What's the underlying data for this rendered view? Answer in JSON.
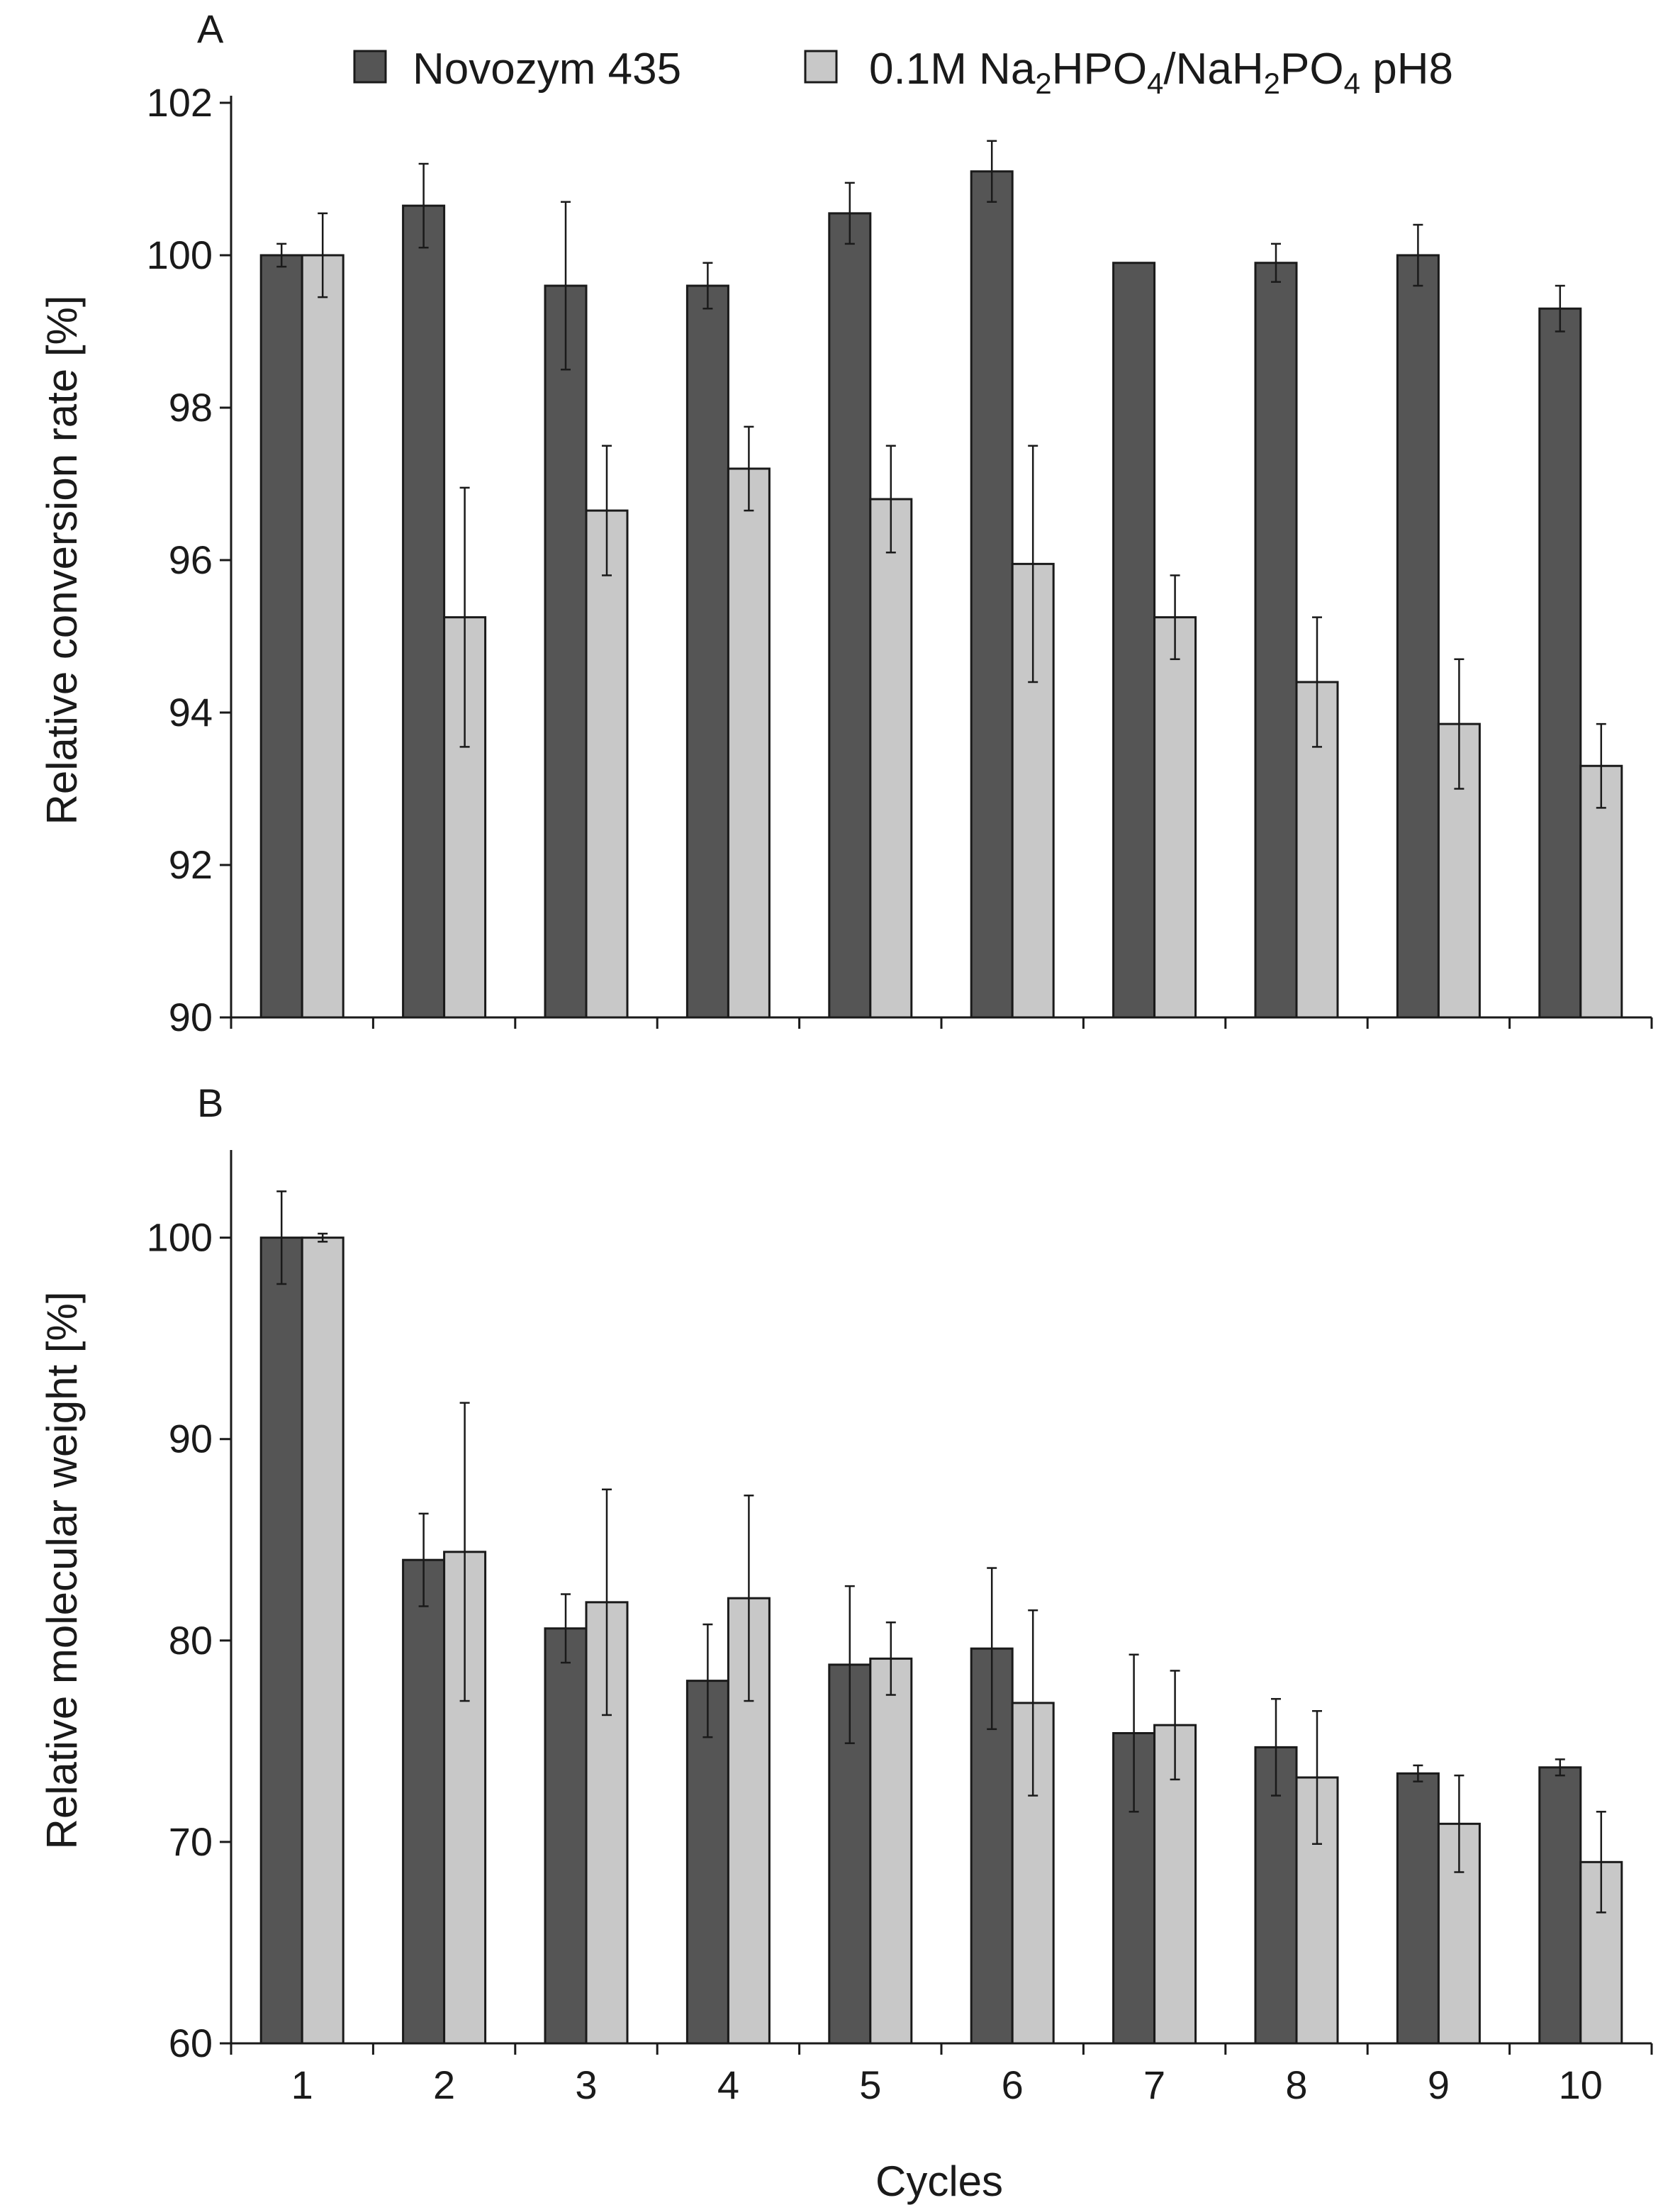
{
  "legend": {
    "series_1": "Novozym 435",
    "series_2_parts": {
      "p1": "0.1M Na",
      "s1": "2",
      "p2": "HPO",
      "s2": "4",
      "p3": "/NaH",
      "s3": "2",
      "p4": "PO",
      "s4": "4",
      "p5": " pH8"
    }
  },
  "colors": {
    "series_1": "#555555",
    "series_2": "#c8c8c8",
    "axis": "#1a1a1a"
  },
  "chart_data": [
    {
      "type": "bar",
      "panel_label": "A",
      "title": "",
      "xlabel": "",
      "ylabel": "Relative conversion rate [%]",
      "ylim": [
        90,
        102
      ],
      "yticks": [
        90,
        92,
        94,
        96,
        98,
        100,
        102
      ],
      "categories": [
        "1",
        "2",
        "3",
        "4",
        "5",
        "6",
        "7",
        "8",
        "9",
        "10"
      ],
      "show_category_labels": false,
      "series": [
        {
          "name": "Novozym 435",
          "values": [
            100.0,
            100.65,
            99.6,
            99.6,
            100.55,
            101.1,
            99.9,
            99.9,
            100.0,
            99.3
          ],
          "errors": [
            0.15,
            0.55,
            1.1,
            0.3,
            0.4,
            0.4,
            0,
            0.25,
            0.4,
            0.3
          ]
        },
        {
          "name": "0.1M Na2HPO4/NaH2PO4 pH8",
          "values": [
            100.0,
            95.25,
            96.65,
            97.2,
            96.8,
            95.95,
            95.25,
            94.4,
            93.85,
            93.3
          ],
          "errors": [
            0.55,
            1.7,
            0.85,
            0.55,
            0.7,
            1.55,
            0.55,
            0.85,
            0.85,
            0.55
          ]
        }
      ]
    },
    {
      "type": "bar",
      "panel_label": "B",
      "title": "",
      "xlabel": "Cycles",
      "ylabel": "Relative molecular weight [%]",
      "ylim": [
        60,
        104
      ],
      "yticks": [
        60,
        70,
        80,
        90,
        100
      ],
      "categories": [
        "1",
        "2",
        "3",
        "4",
        "5",
        "6",
        "7",
        "8",
        "9",
        "10"
      ],
      "show_category_labels": true,
      "series": [
        {
          "name": "Novozym 435",
          "values": [
            100.0,
            84.0,
            80.6,
            78.0,
            78.8,
            79.6,
            75.4,
            74.7,
            73.4,
            73.7
          ],
          "errors": [
            2.3,
            2.3,
            1.7,
            2.8,
            3.9,
            4.0,
            3.9,
            2.4,
            0.4,
            0.4
          ]
        },
        {
          "name": "0.1M Na2HPO4/NaH2PO4 pH8",
          "values": [
            100.0,
            84.4,
            81.9,
            82.1,
            79.1,
            76.9,
            75.8,
            73.2,
            70.9,
            69.0
          ],
          "errors": [
            0.2,
            7.4,
            5.6,
            5.1,
            1.8,
            4.6,
            2.7,
            3.3,
            2.4,
            2.5
          ]
        }
      ]
    }
  ]
}
